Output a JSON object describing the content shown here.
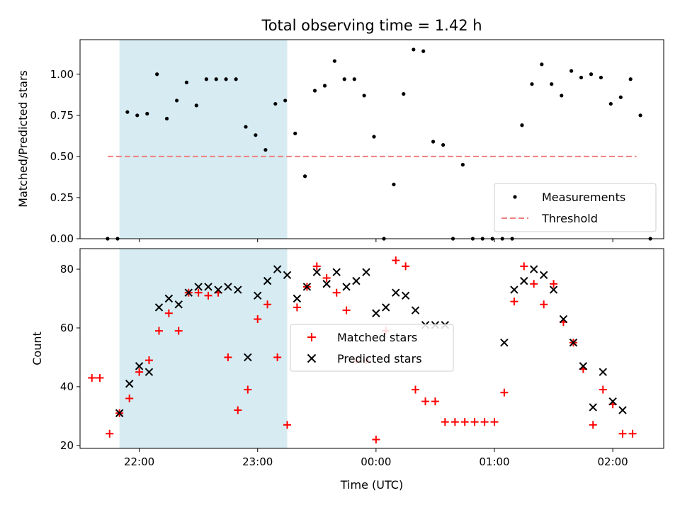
{
  "chart_data": {
    "title": "Total observing time = 1.42 h",
    "x_axis": {
      "label": "Time (UTC)",
      "ticks": [
        {
          "t": 22.0,
          "label": "22:00"
        },
        {
          "t": 23.0,
          "label": "23:00"
        },
        {
          "t": 24.0,
          "label": "00:00"
        },
        {
          "t": 25.0,
          "label": "01:00"
        },
        {
          "t": 26.0,
          "label": "02:00"
        }
      ],
      "range": [
        21.5,
        26.43
      ]
    },
    "shaded_span": {
      "start": 21.833,
      "end": 23.25,
      "color": "#add8e6"
    },
    "panels": [
      {
        "type": "scatter",
        "ylabel": "Matched/Predicted stars",
        "ylim": [
          0,
          1.21
        ],
        "yticks": [
          0.0,
          0.25,
          0.5,
          0.75,
          1.0
        ],
        "ytick_labels": [
          "0.00",
          "0.25",
          "0.50",
          "0.75",
          "1.00"
        ],
        "legend_position": "lower-right",
        "threshold": {
          "name": "Threshold",
          "value": 0.5,
          "x_start": 21.733,
          "x_end": 26.2,
          "color": "#f08080"
        },
        "series": [
          {
            "name": "Measurements",
            "color": "#000000",
            "marker": "dot",
            "points": [
              [
                21.733,
                0.0
              ],
              [
                21.817,
                0.0
              ],
              [
                21.9,
                0.77
              ],
              [
                21.983,
                0.75
              ],
              [
                22.067,
                0.76
              ],
              [
                22.15,
                1.0
              ],
              [
                22.233,
                0.73
              ],
              [
                22.317,
                0.84
              ],
              [
                22.4,
                0.95
              ],
              [
                22.483,
                0.81
              ],
              [
                22.567,
                0.97
              ],
              [
                22.65,
                0.97
              ],
              [
                22.733,
                0.97
              ],
              [
                22.817,
                0.97
              ],
              [
                22.9,
                0.68
              ],
              [
                22.983,
                0.63
              ],
              [
                23.067,
                0.54
              ],
              [
                23.15,
                0.82
              ],
              [
                23.233,
                0.84
              ],
              [
                23.317,
                0.64
              ],
              [
                23.4,
                0.38
              ],
              [
                23.483,
                0.9
              ],
              [
                23.567,
                0.93
              ],
              [
                23.65,
                1.08
              ],
              [
                23.733,
                0.97
              ],
              [
                23.817,
                0.97
              ],
              [
                23.9,
                0.87
              ],
              [
                23.983,
                0.62
              ],
              [
                24.067,
                0.0
              ],
              [
                24.15,
                0.33
              ],
              [
                24.233,
                0.88
              ],
              [
                24.317,
                1.15
              ],
              [
                24.4,
                1.14
              ],
              [
                24.483,
                0.59
              ],
              [
                24.567,
                0.57
              ],
              [
                24.65,
                0.0
              ],
              [
                24.733,
                0.45
              ],
              [
                24.817,
                0.0
              ],
              [
                24.9,
                0.0
              ],
              [
                24.983,
                0.0
              ],
              [
                25.067,
                0.0
              ],
              [
                25.15,
                0.0
              ],
              [
                25.233,
                0.69
              ],
              [
                25.317,
                0.94
              ],
              [
                25.4,
                1.06
              ],
              [
                25.483,
                0.94
              ],
              [
                25.567,
                0.87
              ],
              [
                25.65,
                1.02
              ],
              [
                25.733,
                0.98
              ],
              [
                25.817,
                1.0
              ],
              [
                25.9,
                0.98
              ],
              [
                25.983,
                0.82
              ],
              [
                26.067,
                0.86
              ],
              [
                26.15,
                0.97
              ],
              [
                26.233,
                0.75
              ],
              [
                26.317,
                0.0
              ]
            ]
          }
        ]
      },
      {
        "type": "scatter",
        "ylabel": "Count",
        "ylim": [
          19,
          87
        ],
        "yticks": [
          20,
          40,
          60,
          80
        ],
        "ytick_labels": [
          "20",
          "40",
          "60",
          "80"
        ],
        "legend_position": "center",
        "series": [
          {
            "name": "Matched stars",
            "color": "#ff0000",
            "marker": "plus",
            "points": [
              [
                21.6,
                43
              ],
              [
                21.667,
                43
              ],
              [
                21.75,
                24
              ],
              [
                21.833,
                31
              ],
              [
                21.917,
                36
              ],
              [
                22.0,
                45
              ],
              [
                22.083,
                49
              ],
              [
                22.167,
                59
              ],
              [
                22.25,
                65
              ],
              [
                22.333,
                59
              ],
              [
                22.417,
                72
              ],
              [
                22.5,
                72
              ],
              [
                22.583,
                71
              ],
              [
                22.667,
                72
              ],
              [
                22.75,
                50
              ],
              [
                22.833,
                32
              ],
              [
                22.917,
                39
              ],
              [
                23.0,
                63
              ],
              [
                23.083,
                68
              ],
              [
                23.167,
                50
              ],
              [
                23.25,
                27
              ],
              [
                23.333,
                67
              ],
              [
                23.417,
                74
              ],
              [
                23.5,
                81
              ],
              [
                23.583,
                77
              ],
              [
                23.667,
                72
              ],
              [
                23.75,
                66
              ],
              [
                23.833,
                49
              ],
              [
                23.917,
                49
              ],
              [
                24.0,
                22
              ],
              [
                24.083,
                59
              ],
              [
                24.167,
                83
              ],
              [
                24.25,
                81
              ],
              [
                24.333,
                39
              ],
              [
                24.417,
                35
              ],
              [
                24.5,
                35
              ],
              [
                24.583,
                28
              ],
              [
                24.667,
                28
              ],
              [
                24.75,
                28
              ],
              [
                24.833,
                28
              ],
              [
                24.917,
                28
              ],
              [
                25.0,
                28
              ],
              [
                25.083,
                38
              ],
              [
                25.167,
                69
              ],
              [
                25.25,
                81
              ],
              [
                25.333,
                75
              ],
              [
                25.417,
                68
              ],
              [
                25.5,
                75
              ],
              [
                25.583,
                62
              ],
              [
                25.667,
                55
              ],
              [
                25.75,
                46
              ],
              [
                25.833,
                27
              ],
              [
                25.917,
                39
              ],
              [
                26.0,
                34
              ],
              [
                26.083,
                24
              ],
              [
                26.167,
                24
              ]
            ]
          },
          {
            "name": "Predicted stars",
            "color": "#000000",
            "marker": "cross",
            "points": [
              [
                21.833,
                31
              ],
              [
                21.917,
                41
              ],
              [
                22.0,
                47
              ],
              [
                22.083,
                45
              ],
              [
                22.167,
                67
              ],
              [
                22.25,
                70
              ],
              [
                22.333,
                68
              ],
              [
                22.417,
                72
              ],
              [
                22.5,
                74
              ],
              [
                22.583,
                74
              ],
              [
                22.667,
                73
              ],
              [
                22.75,
                74
              ],
              [
                22.833,
                73
              ],
              [
                22.917,
                50
              ],
              [
                23.0,
                71
              ],
              [
                23.083,
                76
              ],
              [
                23.167,
                80
              ],
              [
                23.25,
                78
              ],
              [
                23.333,
                70
              ],
              [
                23.417,
                74
              ],
              [
                23.5,
                79
              ],
              [
                23.583,
                75
              ],
              [
                23.667,
                79
              ],
              [
                23.75,
                74
              ],
              [
                23.833,
                76
              ],
              [
                23.917,
                79
              ],
              [
                24.0,
                65
              ],
              [
                24.083,
                67
              ],
              [
                24.167,
                72
              ],
              [
                24.25,
                71
              ],
              [
                24.333,
                66
              ],
              [
                24.417,
                61
              ],
              [
                24.5,
                61
              ],
              [
                24.583,
                61
              ],
              [
                25.083,
                55
              ],
              [
                25.167,
                73
              ],
              [
                25.25,
                76
              ],
              [
                25.333,
                80
              ],
              [
                25.417,
                78
              ],
              [
                25.5,
                73
              ],
              [
                25.583,
                63
              ],
              [
                25.667,
                55
              ],
              [
                25.75,
                47
              ],
              [
                25.833,
                33
              ],
              [
                25.917,
                45
              ],
              [
                26.0,
                35
              ],
              [
                26.083,
                32
              ]
            ]
          }
        ]
      }
    ]
  }
}
